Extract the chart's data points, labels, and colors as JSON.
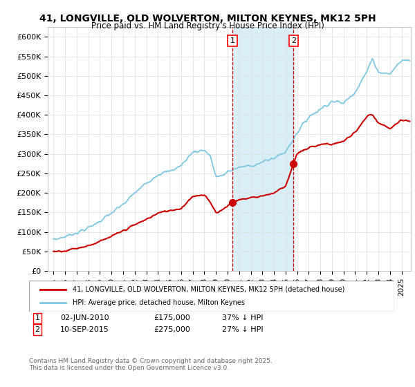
{
  "title": "41, LONGVILLE, OLD WOLVERTON, MILTON KEYNES, MK12 5PH",
  "subtitle": "Price paid vs. HM Land Registry's House Price Index (HPI)",
  "ylabel_ticks": [
    "£0",
    "£50K",
    "£100K",
    "£150K",
    "£200K",
    "£250K",
    "£300K",
    "£350K",
    "£400K",
    "£450K",
    "£500K",
    "£550K",
    "£600K"
  ],
  "ytick_values": [
    0,
    50000,
    100000,
    150000,
    200000,
    250000,
    300000,
    350000,
    400000,
    450000,
    500000,
    550000,
    600000
  ],
  "ylim": [
    0,
    625000
  ],
  "hpi_color": "#7ec8e3",
  "price_color": "#cc0000",
  "shade_color": "#daeef8",
  "vline_color": "#cc0000",
  "marker1_date_x": 2010.42,
  "marker1_price": 175000,
  "marker1_label": "02-JUN-2010",
  "marker1_text": "£175,000",
  "marker1_pct": "37% ↓ HPI",
  "marker2_date_x": 2015.69,
  "marker2_price": 275000,
  "marker2_label": "10-SEP-2015",
  "marker2_text": "£275,000",
  "marker2_pct": "27% ↓ HPI",
  "legend_label1": "41, LONGVILLE, OLD WOLVERTON, MILTON KEYNES, MK12 5PH (detached house)",
  "legend_label2": "HPI: Average price, detached house, Milton Keynes",
  "footnote": "Contains HM Land Registry data © Crown copyright and database right 2025.\nThis data is licensed under the Open Government Licence v3.0.",
  "xlim_start": 1994.5,
  "xlim_end": 2025.8,
  "xtick_years": [
    1995,
    1996,
    1997,
    1998,
    1999,
    2000,
    2001,
    2002,
    2003,
    2004,
    2005,
    2006,
    2007,
    2008,
    2009,
    2010,
    2011,
    2012,
    2013,
    2014,
    2015,
    2016,
    2017,
    2018,
    2019,
    2020,
    2021,
    2022,
    2023,
    2024,
    2025
  ],
  "hpi_knots_x": [
    1995,
    1996,
    1997,
    1998,
    1999,
    2000,
    2001,
    2002,
    2003,
    2004,
    2005,
    2006,
    2007,
    2008.0,
    2008.5,
    2009.0,
    2009.5,
    2010,
    2011,
    2012,
    2013,
    2014,
    2015,
    2016,
    2017,
    2018,
    2019,
    2020,
    2021,
    2022,
    2022.5,
    2023,
    2024,
    2025
  ],
  "hpi_knots_y": [
    80000,
    88000,
    98000,
    110000,
    128000,
    148000,
    170000,
    200000,
    225000,
    248000,
    255000,
    270000,
    305000,
    310000,
    295000,
    242000,
    242000,
    255000,
    265000,
    270000,
    278000,
    290000,
    305000,
    355000,
    395000,
    415000,
    435000,
    430000,
    460000,
    510000,
    545000,
    510000,
    505000,
    540000
  ],
  "price_knots_x": [
    1995,
    1996,
    1997,
    1998,
    1999,
    2000,
    2001,
    2002,
    2003,
    2004,
    2005,
    2006,
    2007,
    2008.0,
    2008.5,
    2009.0,
    2009.5,
    2010.0,
    2010.42,
    2011,
    2012,
    2013,
    2014,
    2015.0,
    2015.69,
    2016,
    2017,
    2018,
    2019,
    2020,
    2021,
    2022,
    2022.5,
    2023,
    2024,
    2025
  ],
  "price_knots_y": [
    50000,
    52000,
    58000,
    65000,
    75000,
    88000,
    103000,
    118000,
    132000,
    148000,
    155000,
    160000,
    192000,
    193000,
    178000,
    150000,
    155000,
    168000,
    175000,
    182000,
    188000,
    192000,
    200000,
    218000,
    275000,
    300000,
    315000,
    325000,
    325000,
    332000,
    355000,
    395000,
    400000,
    378000,
    365000,
    385000
  ]
}
